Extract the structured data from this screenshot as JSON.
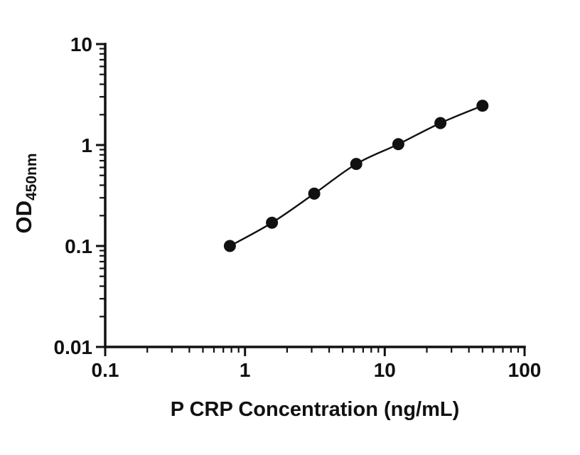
{
  "figure": {
    "background": "#ffffff"
  },
  "chart_data": {
    "type": "scatter-line",
    "title": "",
    "xlabel": "P CRP Concentration (ng/mL)",
    "ylabel": "OD",
    "ylabel_subscript": "450nm",
    "x_scale": "log10",
    "y_scale": "log10",
    "xlim": [
      0.1,
      100
    ],
    "ylim": [
      0.01,
      10
    ],
    "x_major_ticks": [
      0.1,
      1,
      10,
      100
    ],
    "x_major_tick_labels": [
      "0.1",
      "1",
      "10",
      "100"
    ],
    "y_major_ticks": [
      0.01,
      0.1,
      1,
      10
    ],
    "y_major_tick_labels": [
      "0.01",
      "0.1",
      "1",
      "10"
    ],
    "minor_ticks": true,
    "grid": false,
    "legend": false,
    "axis_color": "#111111",
    "series": [
      {
        "marker": "filled-circle",
        "marker_color": "#111111",
        "line_color": "#111111",
        "points": [
          {
            "x": 0.78,
            "y": 0.1
          },
          {
            "x": 1.56,
            "y": 0.17
          },
          {
            "x": 3.13,
            "y": 0.33
          },
          {
            "x": 6.25,
            "y": 0.65
          },
          {
            "x": 12.5,
            "y": 1.02
          },
          {
            "x": 25,
            "y": 1.65
          },
          {
            "x": 50,
            "y": 2.45
          }
        ]
      }
    ]
  }
}
